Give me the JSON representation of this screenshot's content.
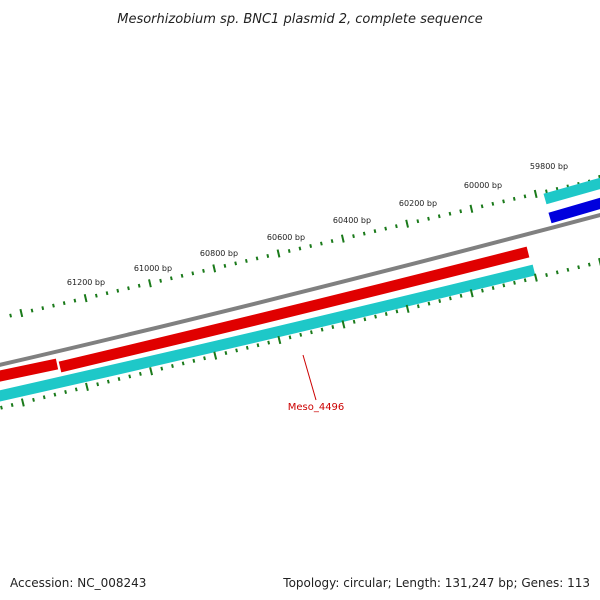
{
  "title": "Mesorhizobium sp. BNC1 plasmid 2, complete sequence",
  "colors": {
    "backbone": "#808080",
    "forward_gene": "#e00000",
    "reverse_gene": "#1ec8c8",
    "other_gene": "#0000dd",
    "ticks": "#1a7a1a",
    "gene_label": "#cc0000"
  },
  "scale_ticks": [
    {
      "label": "59800 bp"
    },
    {
      "label": "60000 bp"
    },
    {
      "label": "60200 bp"
    },
    {
      "label": "60400 bp"
    },
    {
      "label": "60600 bp"
    },
    {
      "label": "60800 bp"
    },
    {
      "label": "61000 bp"
    },
    {
      "label": "61200 bp"
    }
  ],
  "gene_label": "Meso_4496",
  "footer": {
    "accession": "Accession: NC_008243",
    "summary": "Topology: circular; Length: 131,247 bp; Genes: 113"
  }
}
